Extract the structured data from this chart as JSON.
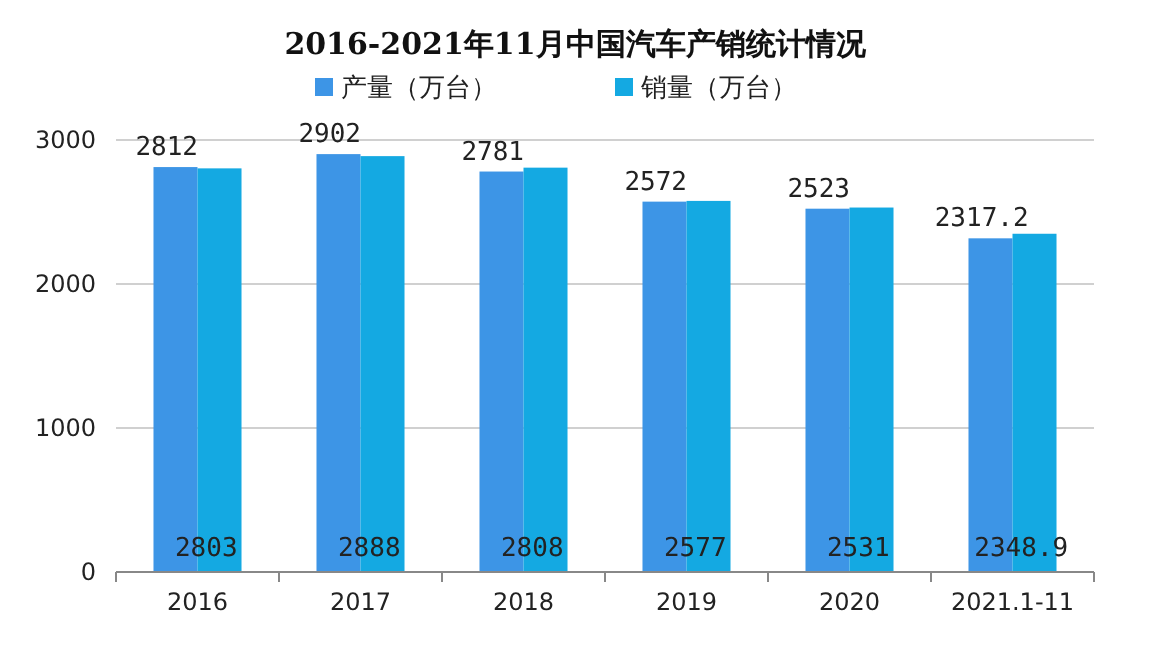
{
  "chart_data": {
    "type": "bar",
    "title": "2016-2021年11月中国汽车产销统计情况",
    "categories": [
      "2016",
      "2017",
      "2018",
      "2019",
      "2020",
      "2021.1-11"
    ],
    "series": [
      {
        "name": "产量（万台）",
        "color": "#3d95e6",
        "values": [
          2812,
          2902,
          2781,
          2572,
          2523,
          2317.2
        ]
      },
      {
        "name": "销量（万台）",
        "color": "#14a9e2",
        "values": [
          2803,
          2888,
          2808,
          2577,
          2531,
          2348.9
        ]
      }
    ],
    "ylim": [
      0,
      3000
    ],
    "yticks": [
      0,
      1000,
      2000,
      3000
    ],
    "grid": "y",
    "legend": "top",
    "data_labels": true
  }
}
